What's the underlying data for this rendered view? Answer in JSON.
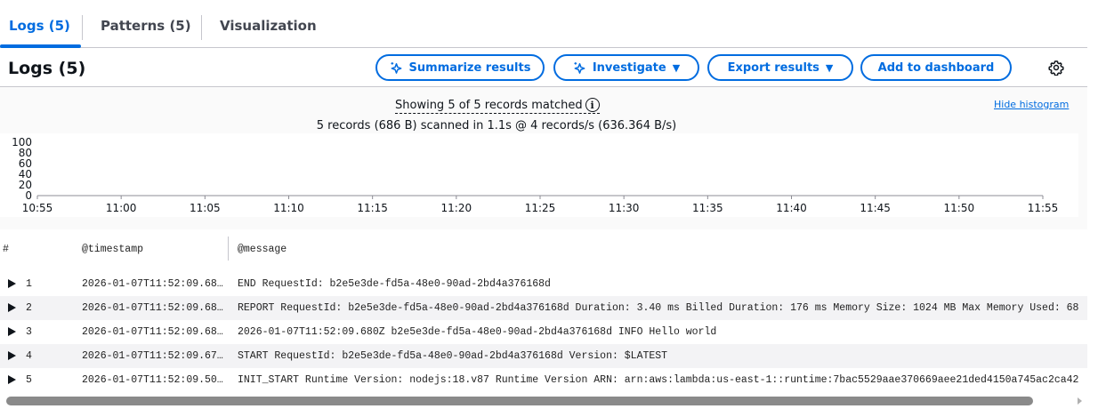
{
  "tabs": [
    {
      "label": "Logs (5)",
      "active": true
    },
    {
      "label": "Patterns (5)"
    },
    {
      "label": "Visualization"
    }
  ],
  "header": {
    "title": "Logs (5)",
    "buttons": {
      "summarize": "Summarize results",
      "investigate": "Investigate",
      "export": "Export results",
      "dashboard": "Add to dashboard"
    },
    "settings_icon": "gear-icon"
  },
  "stats": {
    "showing": "Showing 5 of 5 records matched",
    "scanned": "5 records (686 B) scanned in 1.1s @ 4 records/s (636.364 B/s)",
    "hide_histogram": "Hide histogram"
  },
  "histogram": {
    "y_ticks": [
      "100",
      "80",
      "60",
      "40",
      "20",
      "0"
    ],
    "x_ticks": [
      "10:55",
      "11:00",
      "11:05",
      "11:10",
      "11:15",
      "11:20",
      "11:25",
      "11:30",
      "11:35",
      "11:40",
      "11:45",
      "11:50",
      "11:55"
    ]
  },
  "table": {
    "columns": [
      "#",
      "@timestamp",
      "@message"
    ],
    "rows": [
      {
        "n": "1",
        "ts": "2026-01-07T11:52:09.68…",
        "msg": "END RequestId: b2e5e3de-fd5a-48e0-90ad-2bd4a376168d"
      },
      {
        "n": "2",
        "ts": "2026-01-07T11:52:09.68…",
        "msg": "REPORT RequestId: b2e5e3de-fd5a-48e0-90ad-2bd4a376168d Duration: 3.40 ms Billed Duration: 176 ms Memory Size: 1024 MB Max Memory Used: 68"
      },
      {
        "n": "3",
        "ts": "2026-01-07T11:52:09.68…",
        "msg": "2026-01-07T11:52:09.680Z b2e5e3de-fd5a-48e0-90ad-2bd4a376168d INFO Hello world"
      },
      {
        "n": "4",
        "ts": "2026-01-07T11:52:09.67…",
        "msg": "START RequestId: b2e5e3de-fd5a-48e0-90ad-2bd4a376168d Version: $LATEST"
      },
      {
        "n": "5",
        "ts": "2026-01-07T11:52:09.50…",
        "msg": "INIT_START Runtime Version: nodejs:18.v87 Runtime Version ARN: arn:aws:lambda:us-east-1::runtime:7bac5529aae370669aee21ded4150a745ac2ca42"
      }
    ]
  },
  "colors": {
    "accent": "#006ce0"
  }
}
